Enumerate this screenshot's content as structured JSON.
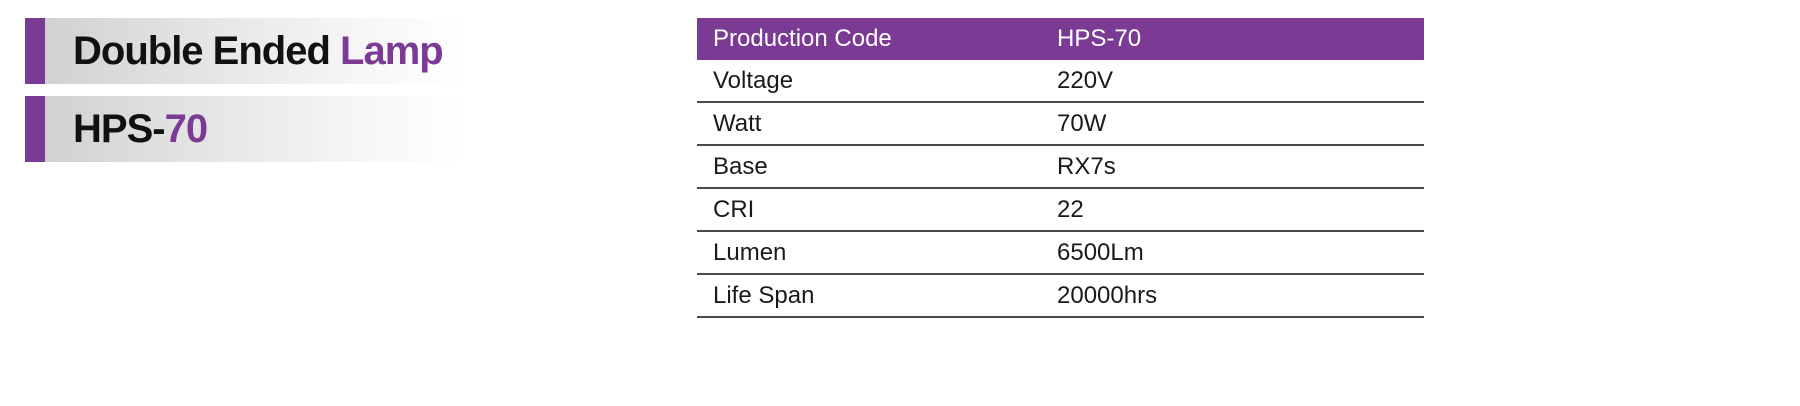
{
  "colors": {
    "accent": "#7b3a93",
    "header_bg": "#7b3a93",
    "title_text": "#111111"
  },
  "title": {
    "line1_main": "Double Ended",
    "line1_highlight": "Lamp",
    "line2_main": "HPS-",
    "line2_highlight": "70"
  },
  "spec_table": {
    "header": {
      "label": "Production Code",
      "value": "HPS-70"
    },
    "rows": [
      {
        "label": "Voltage",
        "value": "220V"
      },
      {
        "label": "Watt",
        "value": "70W"
      },
      {
        "label": "Base",
        "value": "RX7s"
      },
      {
        "label": "CRI",
        "value": "22"
      },
      {
        "label": "Lumen",
        "value": "6500Lm"
      },
      {
        "label": "Life Span",
        "value": "20000hrs"
      }
    ]
  }
}
